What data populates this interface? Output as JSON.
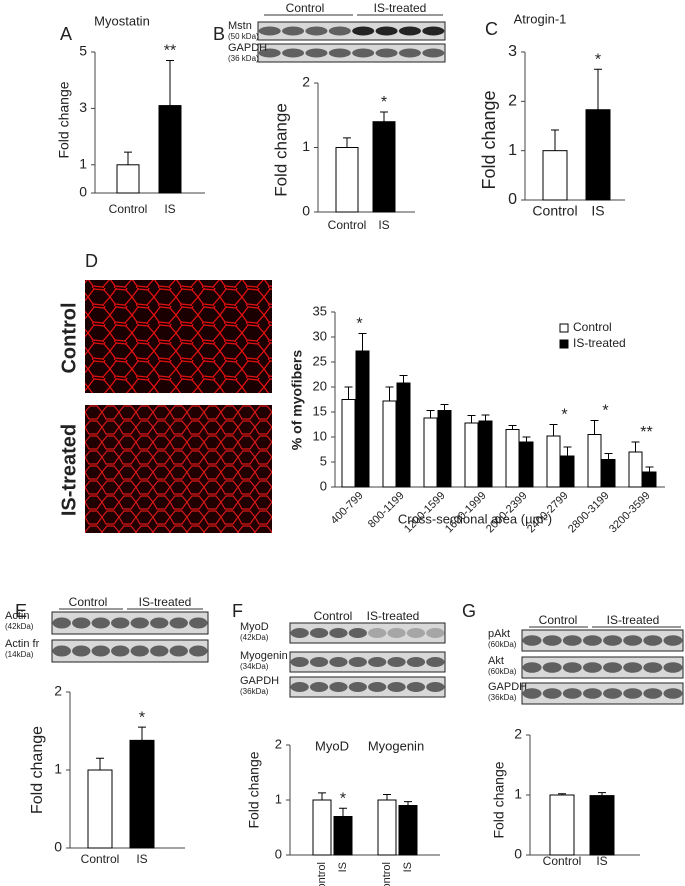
{
  "chart_data": [
    {
      "type": "bar",
      "panel": "A",
      "title": "Myostatin",
      "ylabel": "Fold change",
      "categories": [
        "Control",
        "IS"
      ],
      "values": [
        1.0,
        3.1
      ],
      "errors": [
        0.45,
        1.6
      ],
      "colors": [
        "#ffffff",
        "#000000"
      ],
      "significance": [
        null,
        "**"
      ],
      "ylim": [
        0,
        5
      ],
      "yticks": [
        0,
        1,
        3,
        5
      ]
    },
    {
      "type": "bar",
      "panel": "B",
      "ylabel": "Fold change",
      "categories": [
        "Control",
        "IS"
      ],
      "values": [
        1.0,
        1.4
      ],
      "errors": [
        0.15,
        0.15
      ],
      "colors": [
        "#ffffff",
        "#000000"
      ],
      "significance": [
        null,
        "*"
      ],
      "ylim": [
        0,
        2
      ],
      "yticks": [
        0,
        1,
        2
      ],
      "blot": {
        "groups": [
          "Control",
          "IS-treated"
        ],
        "rows": [
          {
            "name": "Mstn",
            "kda": "(50 kDa)"
          },
          {
            "name": "GAPDH",
            "kda": "(36 kDa)"
          }
        ]
      }
    },
    {
      "type": "bar",
      "panel": "C",
      "title": "Atrogin-1",
      "ylabel": "Fold change",
      "categories": [
        "Control",
        "IS"
      ],
      "values": [
        1.0,
        1.83
      ],
      "errors": [
        0.42,
        0.82
      ],
      "colors": [
        "#ffffff",
        "#000000"
      ],
      "significance": [
        null,
        "*"
      ],
      "ylim": [
        0,
        3
      ],
      "yticks": [
        0,
        1,
        2,
        3
      ]
    },
    {
      "type": "bar",
      "panel": "D",
      "ylabel": "% of myofibers",
      "xlabel": "Cross-sectional area (µm²)",
      "images": [
        "Control",
        "IS-treated"
      ],
      "categories": [
        "400-799",
        "800-1199",
        "1200-1599",
        "1600-1999",
        "2000-2399",
        "2400-2799",
        "2800-3199",
        "3200-3599"
      ],
      "series": [
        {
          "name": "Control",
          "color": "#ffffff",
          "values": [
            17.5,
            17.2,
            13.8,
            12.8,
            11.5,
            10.2,
            10.5,
            7.0
          ],
          "errors": [
            2.5,
            2.8,
            1.5,
            1.5,
            0.8,
            2.3,
            2.8,
            2.0
          ]
        },
        {
          "name": "IS-treated",
          "color": "#000000",
          "values": [
            27.2,
            20.8,
            15.3,
            13.2,
            9.0,
            6.2,
            5.5,
            3.0
          ],
          "errors": [
            3.5,
            1.5,
            1.2,
            1.2,
            1.0,
            1.8,
            1.2,
            1.0
          ]
        }
      ],
      "significance": [
        "*",
        null,
        null,
        null,
        null,
        "*",
        "*",
        "**"
      ],
      "ylim": [
        0,
        35
      ],
      "yticks": [
        0,
        5,
        10,
        15,
        20,
        25,
        30,
        35
      ],
      "legend": "upper right"
    },
    {
      "type": "bar",
      "panel": "E",
      "ylabel": "Fold change",
      "categories": [
        "Control",
        "IS"
      ],
      "values": [
        1.0,
        1.38
      ],
      "errors": [
        0.15,
        0.17
      ],
      "colors": [
        "#ffffff",
        "#000000"
      ],
      "significance": [
        null,
        "*"
      ],
      "ylim": [
        0,
        2
      ],
      "yticks": [
        0,
        1,
        2
      ],
      "blot": {
        "groups": [
          "Control",
          "IS-treated"
        ],
        "rows": [
          {
            "name": "Actin",
            "kda": "(42kDa)"
          },
          {
            "name": "Actin fr",
            "kda": "(14kDa)"
          }
        ]
      }
    },
    {
      "type": "bar",
      "panel": "F",
      "ylabel": "Fold change",
      "groups": [
        "MyoD",
        "Myogenin"
      ],
      "categories": [
        "Control",
        "IS",
        "Control",
        "IS"
      ],
      "values": [
        1.0,
        0.7,
        1.0,
        0.9
      ],
      "errors": [
        0.13,
        0.15,
        0.1,
        0.07
      ],
      "colors": [
        "#ffffff",
        "#000000",
        "#ffffff",
        "#000000"
      ],
      "significance": [
        null,
        "*",
        null,
        null
      ],
      "ylim": [
        0,
        2
      ],
      "yticks": [
        0,
        1,
        2
      ],
      "blot": {
        "groups": [
          "Control",
          "IS-treated"
        ],
        "rows": [
          {
            "name": "MyoD",
            "kda": "(42kDa)"
          },
          {
            "name": "Myogenin",
            "kda": "(34kDa)"
          },
          {
            "name": "GAPDH",
            "kda": "(36kDa)"
          }
        ]
      }
    },
    {
      "type": "bar",
      "panel": "G",
      "ylabel": "Fold change",
      "categories": [
        "Control",
        "IS"
      ],
      "values": [
        1.0,
        0.99
      ],
      "errors": [
        0.02,
        0.05
      ],
      "colors": [
        "#ffffff",
        "#000000"
      ],
      "significance": [
        null,
        null
      ],
      "ylim": [
        0,
        2
      ],
      "yticks": [
        0,
        1,
        2
      ],
      "blot": {
        "groups": [
          "Control",
          "IS-treated"
        ],
        "rows": [
          {
            "name": "pAkt",
            "kda": "(60kDa)"
          },
          {
            "name": "Akt",
            "kda": "(60kDa)"
          },
          {
            "name": "GAPDH",
            "kda": "(36kDa)"
          }
        ]
      }
    }
  ]
}
